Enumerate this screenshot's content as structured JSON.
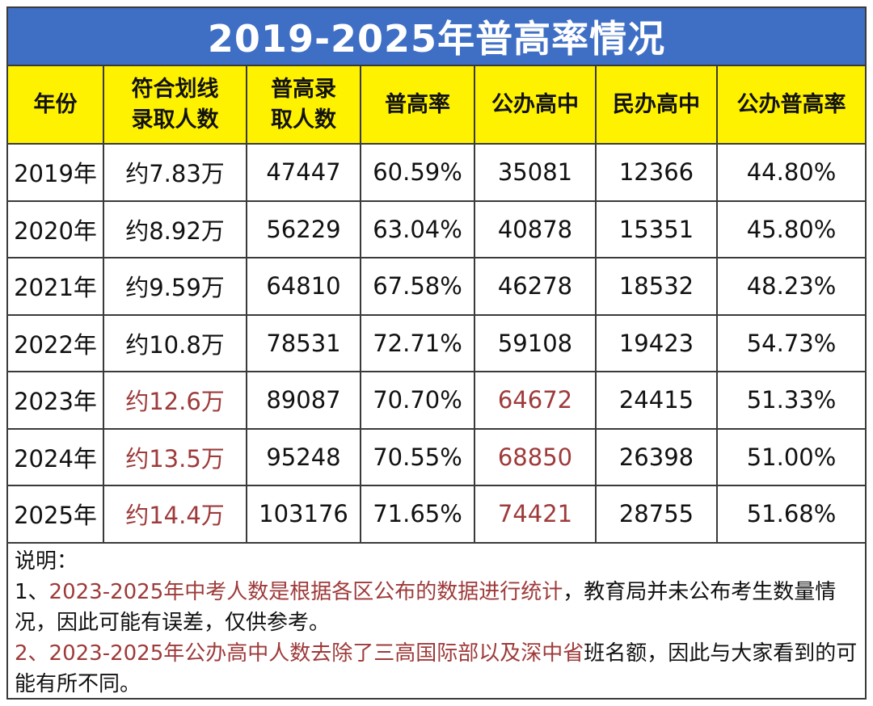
{
  "title": "2019-2025年普高率情况",
  "columns": [
    "年份",
    "符合划线\n录取人数",
    "普高录\n取人数",
    "普高率",
    "公办高中",
    "民办高中",
    "公办普高率"
  ],
  "rows": [
    {
      "year": "2019年",
      "eligible": "约7.83万",
      "admitted": "47447",
      "rate": "60.59%",
      "public": "35081",
      "private": "12366",
      "public_rate": "44.80%",
      "highlight": false
    },
    {
      "year": "2020年",
      "eligible": "约8.92万",
      "admitted": "56229",
      "rate": "63.04%",
      "public": "40878",
      "private": "15351",
      "public_rate": "45.80%",
      "highlight": false
    },
    {
      "year": "2021年",
      "eligible": "约9.59万",
      "admitted": "64810",
      "rate": "67.58%",
      "public": "46278",
      "private": "18532",
      "public_rate": "48.23%",
      "highlight": false
    },
    {
      "year": "2022年",
      "eligible": "约10.8万",
      "admitted": "78531",
      "rate": "72.71%",
      "public": "59108",
      "private": "19423",
      "public_rate": "54.73%",
      "highlight": false
    },
    {
      "year": "2023年",
      "eligible": "约12.6万",
      "admitted": "89087",
      "rate": "70.70%",
      "public": "64672",
      "private": "24415",
      "public_rate": "51.33%",
      "highlight": true
    },
    {
      "year": "2024年",
      "eligible": "约13.5万",
      "admitted": "95248",
      "rate": "70.55%",
      "public": "68850",
      "private": "26398",
      "public_rate": "51.00%",
      "highlight": true
    },
    {
      "year": "2025年",
      "eligible": "约14.4万",
      "admitted": "103176",
      "rate": "71.65%",
      "public": "74421",
      "private": "28755",
      "public_rate": "51.68%",
      "highlight": true
    }
  ],
  "notes": {
    "heading": "说明：",
    "note1_prefix": "1、",
    "note1_red": "2023-2025年中考人数是根据各区公布的数据进行统计",
    "note1_rest": "，教育局并未公布考生数量情况，因此可能有误差，仅供参考。",
    "note2_red": "2、2023-2025年公办高中人数去除了三高国际部以及深中省",
    "note2_rest": "班名额，因此与大家看到的可能有所不同。"
  },
  "colors": {
    "title_bg": "#3f6fc5",
    "header_bg": "#fff200",
    "highlight_text": "#9e3a3a",
    "border": "#3a3a3a"
  }
}
